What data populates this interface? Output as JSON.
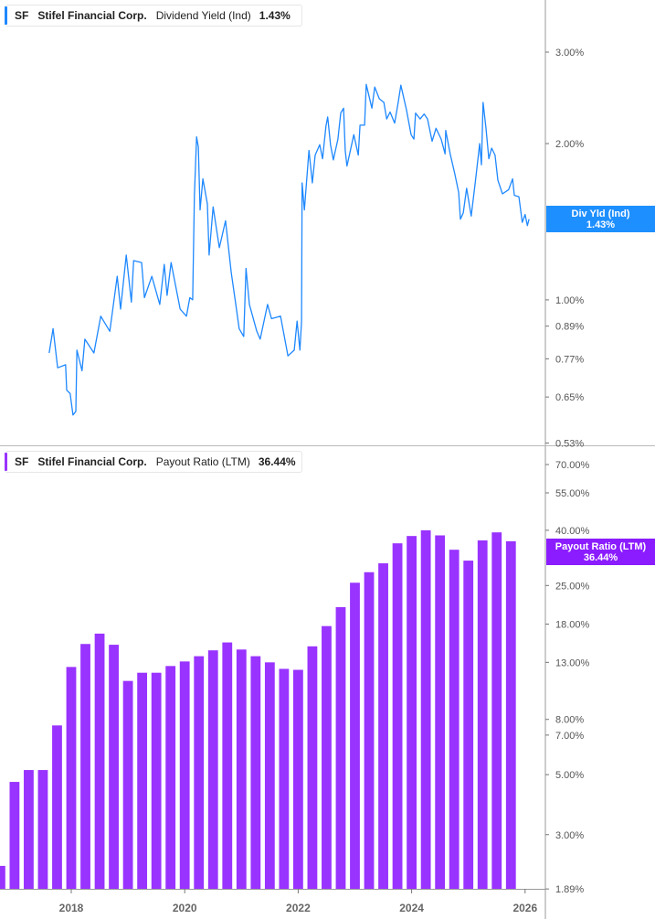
{
  "colors": {
    "yield_line": "#1e88ff",
    "payout_bar": "#9933ff",
    "yield_badge": "#1e8fff",
    "payout_badge": "#8b1cff",
    "axis": "#999999"
  },
  "top_legend": {
    "ticker": "SF",
    "company": "Stifel Financial Corp.",
    "metric": "Dividend Yield (Ind)",
    "value": "1.43%"
  },
  "bottom_legend": {
    "ticker": "SF",
    "company": "Stifel Financial Corp.",
    "metric": "Payout Ratio (LTM)",
    "value": "36.44%"
  },
  "top_badge": {
    "label": "Div Yld (Ind)",
    "value": "1.43%"
  },
  "bottom_badge": {
    "label": "Payout Ratio (LTM)",
    "value": "36.44%"
  },
  "chart_data": [
    {
      "type": "line",
      "title": "Dividend Yield (Ind)",
      "yscale": "log",
      "ylim": [
        0.53,
        3.0
      ],
      "xlim": [
        2016.74,
        2026.35
      ],
      "yticks": [
        {
          "v": 3.0,
          "label": "3.00%"
        },
        {
          "v": 2.0,
          "label": "2.00%"
        },
        {
          "v": 1.0,
          "label": "1.00%"
        },
        {
          "v": 0.89,
          "label": "0.89%"
        },
        {
          "v": 0.77,
          "label": "0.77%"
        },
        {
          "v": 0.65,
          "label": "0.65%"
        },
        {
          "v": 0.53,
          "label": "0.53%"
        }
      ],
      "series": [
        {
          "name": "Dividend Yield (Ind)",
          "points": [
            [
              2017.61,
              0.79
            ],
            [
              2017.68,
              0.88
            ],
            [
              2017.76,
              0.74
            ],
            [
              2017.9,
              0.75
            ],
            [
              2017.92,
              0.67
            ],
            [
              2017.98,
              0.66
            ],
            [
              2018.03,
              0.6
            ],
            [
              2018.08,
              0.61
            ],
            [
              2018.1,
              0.8
            ],
            [
              2018.19,
              0.73
            ],
            [
              2018.24,
              0.84
            ],
            [
              2018.4,
              0.79
            ],
            [
              2018.52,
              0.93
            ],
            [
              2018.68,
              0.87
            ],
            [
              2018.81,
              1.11
            ],
            [
              2018.87,
              0.96
            ],
            [
              2018.97,
              1.22
            ],
            [
              2019.06,
              0.99
            ],
            [
              2019.1,
              1.19
            ],
            [
              2019.24,
              1.18
            ],
            [
              2019.29,
              1.01
            ],
            [
              2019.42,
              1.11
            ],
            [
              2019.56,
              0.98
            ],
            [
              2019.64,
              1.17
            ],
            [
              2019.69,
              1.02
            ],
            [
              2019.76,
              1.18
            ],
            [
              2019.92,
              0.96
            ],
            [
              2020.03,
              0.93
            ],
            [
              2020.09,
              1.01
            ],
            [
              2020.14,
              1.0
            ],
            [
              2020.17,
              1.59
            ],
            [
              2020.21,
              2.06
            ],
            [
              2020.24,
              1.97
            ],
            [
              2020.27,
              1.49
            ],
            [
              2020.32,
              1.71
            ],
            [
              2020.4,
              1.53
            ],
            [
              2020.43,
              1.22
            ],
            [
              2020.5,
              1.51
            ],
            [
              2020.61,
              1.26
            ],
            [
              2020.72,
              1.42
            ],
            [
              2020.82,
              1.13
            ],
            [
              2020.9,
              0.98
            ],
            [
              2020.96,
              0.88
            ],
            [
              2021.04,
              0.85
            ],
            [
              2021.08,
              1.15
            ],
            [
              2021.14,
              0.98
            ],
            [
              2021.27,
              0.87
            ],
            [
              2021.33,
              0.84
            ],
            [
              2021.46,
              0.98
            ],
            [
              2021.53,
              0.92
            ],
            [
              2021.69,
              0.93
            ],
            [
              2021.82,
              0.78
            ],
            [
              2021.93,
              0.8
            ],
            [
              2021.98,
              0.91
            ],
            [
              2022.03,
              0.8
            ],
            [
              2022.06,
              0.91
            ],
            [
              2022.07,
              1.68
            ],
            [
              2022.11,
              1.49
            ],
            [
              2022.19,
              1.94
            ],
            [
              2022.25,
              1.68
            ],
            [
              2022.3,
              1.9
            ],
            [
              2022.38,
              1.99
            ],
            [
              2022.43,
              1.87
            ],
            [
              2022.49,
              2.16
            ],
            [
              2022.52,
              2.25
            ],
            [
              2022.57,
              1.99
            ],
            [
              2022.62,
              1.86
            ],
            [
              2022.7,
              2.04
            ],
            [
              2022.75,
              2.29
            ],
            [
              2022.8,
              2.34
            ],
            [
              2022.83,
              1.94
            ],
            [
              2022.86,
              1.81
            ],
            [
              2022.98,
              2.08
            ],
            [
              2023.06,
              1.9
            ],
            [
              2023.09,
              2.17
            ],
            [
              2023.17,
              2.17
            ],
            [
              2023.2,
              2.6
            ],
            [
              2023.3,
              2.34
            ],
            [
              2023.35,
              2.57
            ],
            [
              2023.43,
              2.44
            ],
            [
              2023.51,
              2.4
            ],
            [
              2023.56,
              2.23
            ],
            [
              2023.62,
              2.3
            ],
            [
              2023.7,
              2.19
            ],
            [
              2023.76,
              2.39
            ],
            [
              2023.81,
              2.59
            ],
            [
              2023.91,
              2.32
            ],
            [
              2023.99,
              2.08
            ],
            [
              2024.04,
              2.04
            ],
            [
              2024.07,
              2.29
            ],
            [
              2024.15,
              2.23
            ],
            [
              2024.22,
              2.28
            ],
            [
              2024.28,
              2.23
            ],
            [
              2024.36,
              2.02
            ],
            [
              2024.43,
              2.14
            ],
            [
              2024.52,
              2.04
            ],
            [
              2024.59,
              1.91
            ],
            [
              2024.6,
              2.12
            ],
            [
              2024.68,
              1.91
            ],
            [
              2024.76,
              1.75
            ],
            [
              2024.83,
              1.61
            ],
            [
              2024.86,
              1.43
            ],
            [
              2024.91,
              1.47
            ],
            [
              2024.97,
              1.64
            ],
            [
              2025.05,
              1.45
            ],
            [
              2025.12,
              1.68
            ],
            [
              2025.2,
              2.0
            ],
            [
              2025.23,
              1.82
            ],
            [
              2025.26,
              2.4
            ],
            [
              2025.31,
              2.14
            ],
            [
              2025.36,
              1.87
            ],
            [
              2025.41,
              1.96
            ],
            [
              2025.47,
              1.9
            ],
            [
              2025.52,
              1.7
            ],
            [
              2025.6,
              1.6
            ],
            [
              2025.71,
              1.63
            ],
            [
              2025.78,
              1.71
            ],
            [
              2025.81,
              1.59
            ],
            [
              2025.89,
              1.58
            ],
            [
              2025.95,
              1.41
            ],
            [
              2026.0,
              1.46
            ],
            [
              2026.04,
              1.39
            ],
            [
              2026.07,
              1.43
            ]
          ]
        }
      ]
    },
    {
      "type": "bar",
      "title": "Payout Ratio (LTM)",
      "yscale": "log",
      "ylim": [
        1.89,
        70.0
      ],
      "xlim": [
        2016.74,
        2026.35
      ],
      "yticks": [
        {
          "v": 70,
          "label": "70.00%"
        },
        {
          "v": 55,
          "label": "55.00%"
        },
        {
          "v": 40,
          "label": "40.00%"
        },
        {
          "v": 25,
          "label": "25.00%"
        },
        {
          "v": 18,
          "label": "18.00%"
        },
        {
          "v": 13,
          "label": "13.00%"
        },
        {
          "v": 8,
          "label": "8.00%"
        },
        {
          "v": 7,
          "label": "7.00%"
        },
        {
          "v": 5,
          "label": "5.00%"
        },
        {
          "v": 3,
          "label": "3.00%"
        },
        {
          "v": 1.89,
          "label": "1.89%"
        }
      ],
      "x": [
        2016.75,
        2017.0,
        2017.25,
        2017.5,
        2017.75,
        2018.0,
        2018.25,
        2018.5,
        2018.75,
        2019.0,
        2019.25,
        2019.5,
        2019.75,
        2020.0,
        2020.25,
        2020.5,
        2020.75,
        2021.0,
        2021.25,
        2021.5,
        2021.75,
        2022.0,
        2022.25,
        2022.5,
        2022.75,
        2023.0,
        2023.25,
        2023.5,
        2023.75,
        2024.0,
        2024.25,
        2024.5,
        2024.75,
        2025.0,
        2025.25,
        2025.5,
        2025.75
      ],
      "values": [
        2.3,
        4.7,
        5.2,
        5.2,
        7.6,
        12.5,
        15.2,
        16.6,
        15.1,
        11.1,
        11.9,
        11.9,
        12.6,
        13.1,
        13.7,
        14.4,
        15.4,
        14.5,
        13.7,
        13.0,
        12.3,
        12.2,
        14.9,
        17.7,
        20.8,
        25.6,
        28.0,
        30.2,
        35.8,
        38.1,
        40.0,
        38.3,
        33.9,
        30.9,
        36.7,
        39.3,
        36.44
      ]
    }
  ],
  "x_axis": {
    "ticks": [
      {
        "v": 2018,
        "label": "2018"
      },
      {
        "v": 2020,
        "label": "2020"
      },
      {
        "v": 2022,
        "label": "2022"
      },
      {
        "v": 2024,
        "label": "2024"
      },
      {
        "v": 2026,
        "label": "2026"
      }
    ]
  }
}
